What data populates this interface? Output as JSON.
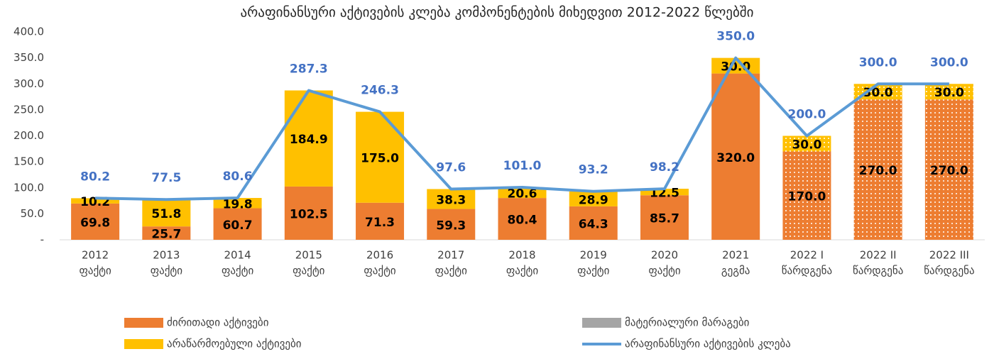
{
  "chart_data": {
    "type": "stacked_bar_line",
    "title": "არაფინანსური აქტივების კლება კომპონენტების მიხედვით 2012-2022 წლებში",
    "categories": [
      [
        "2012",
        "ფაქტი"
      ],
      [
        "2013",
        "ფაქტი"
      ],
      [
        "2014",
        "ფაქტი"
      ],
      [
        "2015",
        "ფაქტი"
      ],
      [
        "2016",
        "ფაქტი"
      ],
      [
        "2017",
        "ფაქტი"
      ],
      [
        "2018",
        "ფაქტი"
      ],
      [
        "2019",
        "ფაქტი"
      ],
      [
        "2020",
        "ფაქტი"
      ],
      [
        "2021",
        "გეგმა"
      ],
      [
        "2022 I",
        "წარდგენა"
      ],
      [
        "2022 II",
        "წარდგენა"
      ],
      [
        "2022 III",
        "წარდგენა"
      ]
    ],
    "series": [
      {
        "name": "ძირითადი აქტივები",
        "color": "#ed7d31",
        "kind": "bar",
        "values": [
          69.8,
          25.7,
          60.7,
          102.5,
          71.3,
          59.3,
          80.4,
          64.3,
          85.7,
          320,
          170,
          270,
          270
        ],
        "value_labels": [
          "69.8",
          "25.7",
          "60.7",
          "102.5",
          "71.3",
          "59.3",
          "80.4",
          "64.3",
          "85.7",
          "320.0",
          "170.0",
          "270.0",
          "270.0"
        ]
      },
      {
        "name": "მატერიალური მარაგები",
        "color": "#a5a5a5",
        "kind": "bar",
        "values": [
          0,
          0,
          0,
          0,
          0,
          0,
          0,
          0,
          0,
          0,
          0,
          0,
          0
        ]
      },
      {
        "name": "არაწარმოებული აქტივები",
        "color": "#ffc000",
        "kind": "bar",
        "values": [
          10.2,
          51.8,
          19.8,
          184.9,
          175,
          38.3,
          20.6,
          28.9,
          12.5,
          30,
          30,
          30,
          30
        ],
        "value_labels": [
          "10.2",
          "51.8",
          "19.8",
          "184.9",
          "175.0",
          "38.3",
          "20.6",
          "28.9",
          "12.5",
          "30.0",
          "30.0",
          "30.0",
          "30.0"
        ]
      },
      {
        "name": "არაფინანსური აქტივების კლება",
        "color": "#5b9bd5",
        "kind": "line",
        "values": [
          80.2,
          77.5,
          80.6,
          287.3,
          246.3,
          97.6,
          101,
          93.2,
          98.2,
          350,
          200,
          300,
          300
        ],
        "value_labels": [
          "80.2",
          "77.5",
          "80.6",
          "287.3",
          "246.3",
          "97.6",
          "101.0",
          "93.2",
          "98.2",
          "350.0",
          "200.0",
          "300.0",
          "300.0"
        ]
      }
    ],
    "dotted": [
      false,
      false,
      false,
      false,
      false,
      false,
      false,
      false,
      false,
      false,
      true,
      true,
      true
    ],
    "ylim": [
      0,
      400
    ],
    "yticks": [
      {
        "value": 0,
        "label": "-"
      },
      {
        "value": 50,
        "label": "50.0"
      },
      {
        "value": 100,
        "label": "100.0"
      },
      {
        "value": 150,
        "label": "150.0"
      },
      {
        "value": 200,
        "label": "200.0"
      },
      {
        "value": 250,
        "label": "250.0"
      },
      {
        "value": 300,
        "label": "300.0"
      },
      {
        "value": 350,
        "label": "350.0"
      },
      {
        "value": 400,
        "label": "400.0"
      }
    ],
    "grid": false,
    "legend": "bottom"
  }
}
